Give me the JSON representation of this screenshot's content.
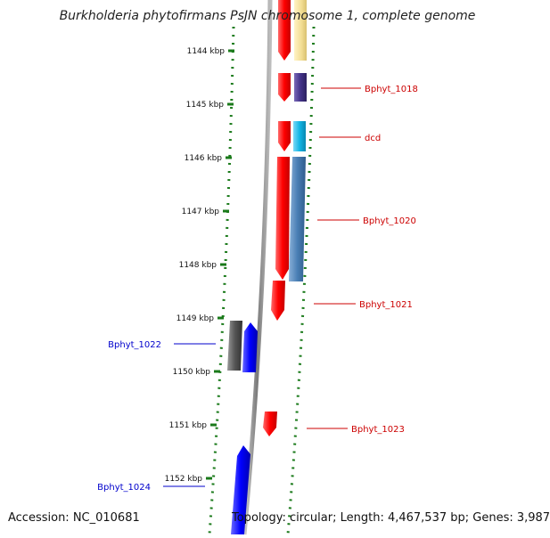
{
  "title": "Burkholderia phytofirmans PsJN chromosome 1, complete genome",
  "accession": "Accession: NC_010681",
  "summary": "Topology: circular; Length: 4,467,537 bp; Genes: 3,987",
  "ticks": [
    {
      "label": "1144 kbp",
      "kbp": 1144
    },
    {
      "label": "1145 kbp",
      "kbp": 1145
    },
    {
      "label": "1146 kbp",
      "kbp": 1146
    },
    {
      "label": "1147 kbp",
      "kbp": 1147
    },
    {
      "label": "1148 kbp",
      "kbp": 1148
    },
    {
      "label": "1149 kbp",
      "kbp": 1149
    },
    {
      "label": "1150 kbp",
      "kbp": 1150
    },
    {
      "label": "1151 kbp",
      "kbp": 1151
    },
    {
      "label": "1152 kbp",
      "kbp": 1152
    }
  ],
  "genes": [
    {
      "label": "Bphyt_1018",
      "color": "#cc0000",
      "side": "right"
    },
    {
      "label": "dcd",
      "color": "#cc0000",
      "side": "right"
    },
    {
      "label": "Bphyt_1020",
      "color": "#cc0000",
      "side": "right"
    },
    {
      "label": "Bphyt_1021",
      "color": "#cc0000",
      "side": "right"
    },
    {
      "label": "Bphyt_1022",
      "color": "#0000cc",
      "side": "left"
    },
    {
      "label": "Bphyt_1023",
      "color": "#cc0000",
      "side": "right"
    },
    {
      "label": "Bphyt_1024",
      "color": "#0000cc",
      "side": "left"
    }
  ],
  "colors": {
    "forward_strand": "#ff0000",
    "reverse_strand": "#0000ff",
    "backbone": "#888888",
    "tick_marks": "#1a7a1a",
    "cog_yellow": "#f5e6a0",
    "cog_purple": "#4b3a8a",
    "cog_cyan": "#11b5e6",
    "cog_steelblue": "#4a7fb5",
    "cog_gray": "#555555"
  }
}
